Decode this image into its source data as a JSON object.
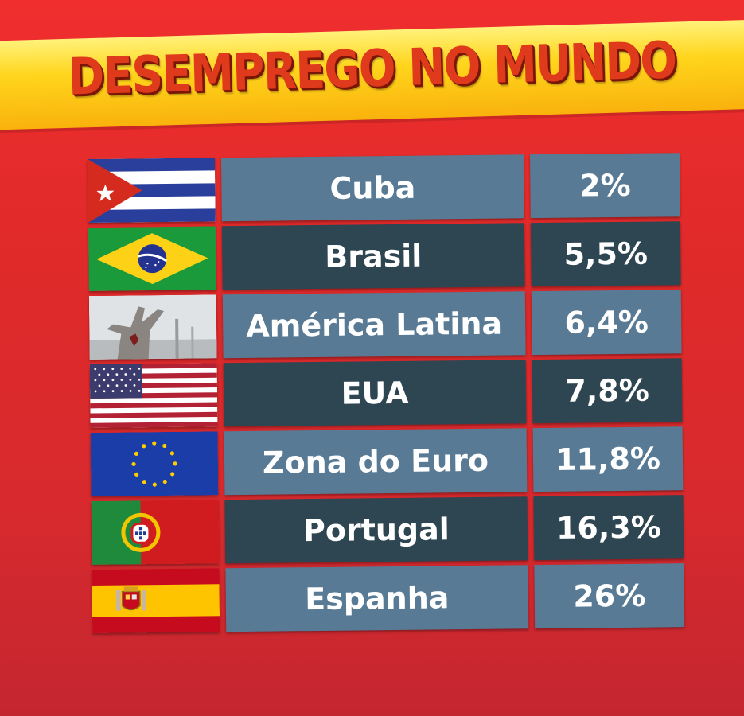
{
  "title": "DESEMPREGO NO MUNDO",
  "colors": {
    "background": "#e02a2a",
    "banner": "#ffd51c",
    "title_text": "#e03a1c",
    "row_light": "#587a94",
    "row_dark": "#2e4552"
  },
  "chart_data": {
    "type": "table",
    "title": "DESEMPREGO NO MUNDO",
    "columns": [
      "",
      "",
      ""
    ],
    "rows": [
      {
        "flag": "cuba-flag-icon",
        "name": "Cuba",
        "value_label": "2%",
        "value": 2
      },
      {
        "flag": "brazil-flag-icon",
        "name": "Brasil",
        "value_label": "5,5%",
        "value": 5.5
      },
      {
        "flag": "latin-america-monument-icon",
        "name": "América Latina",
        "value_label": "6,4%",
        "value": 6.4
      },
      {
        "flag": "usa-flag-icon",
        "name": "EUA",
        "value_label": "7,8%",
        "value": 7.8
      },
      {
        "flag": "eu-flag-icon",
        "name": "Zona do Euro",
        "value_label": "11,8%",
        "value": 11.8
      },
      {
        "flag": "portugal-flag-icon",
        "name": "Portugal",
        "value_label": "16,3%",
        "value": 16.3
      },
      {
        "flag": "spain-flag-icon",
        "name": "Espanha",
        "value_label": "26%",
        "value": 26
      }
    ]
  }
}
